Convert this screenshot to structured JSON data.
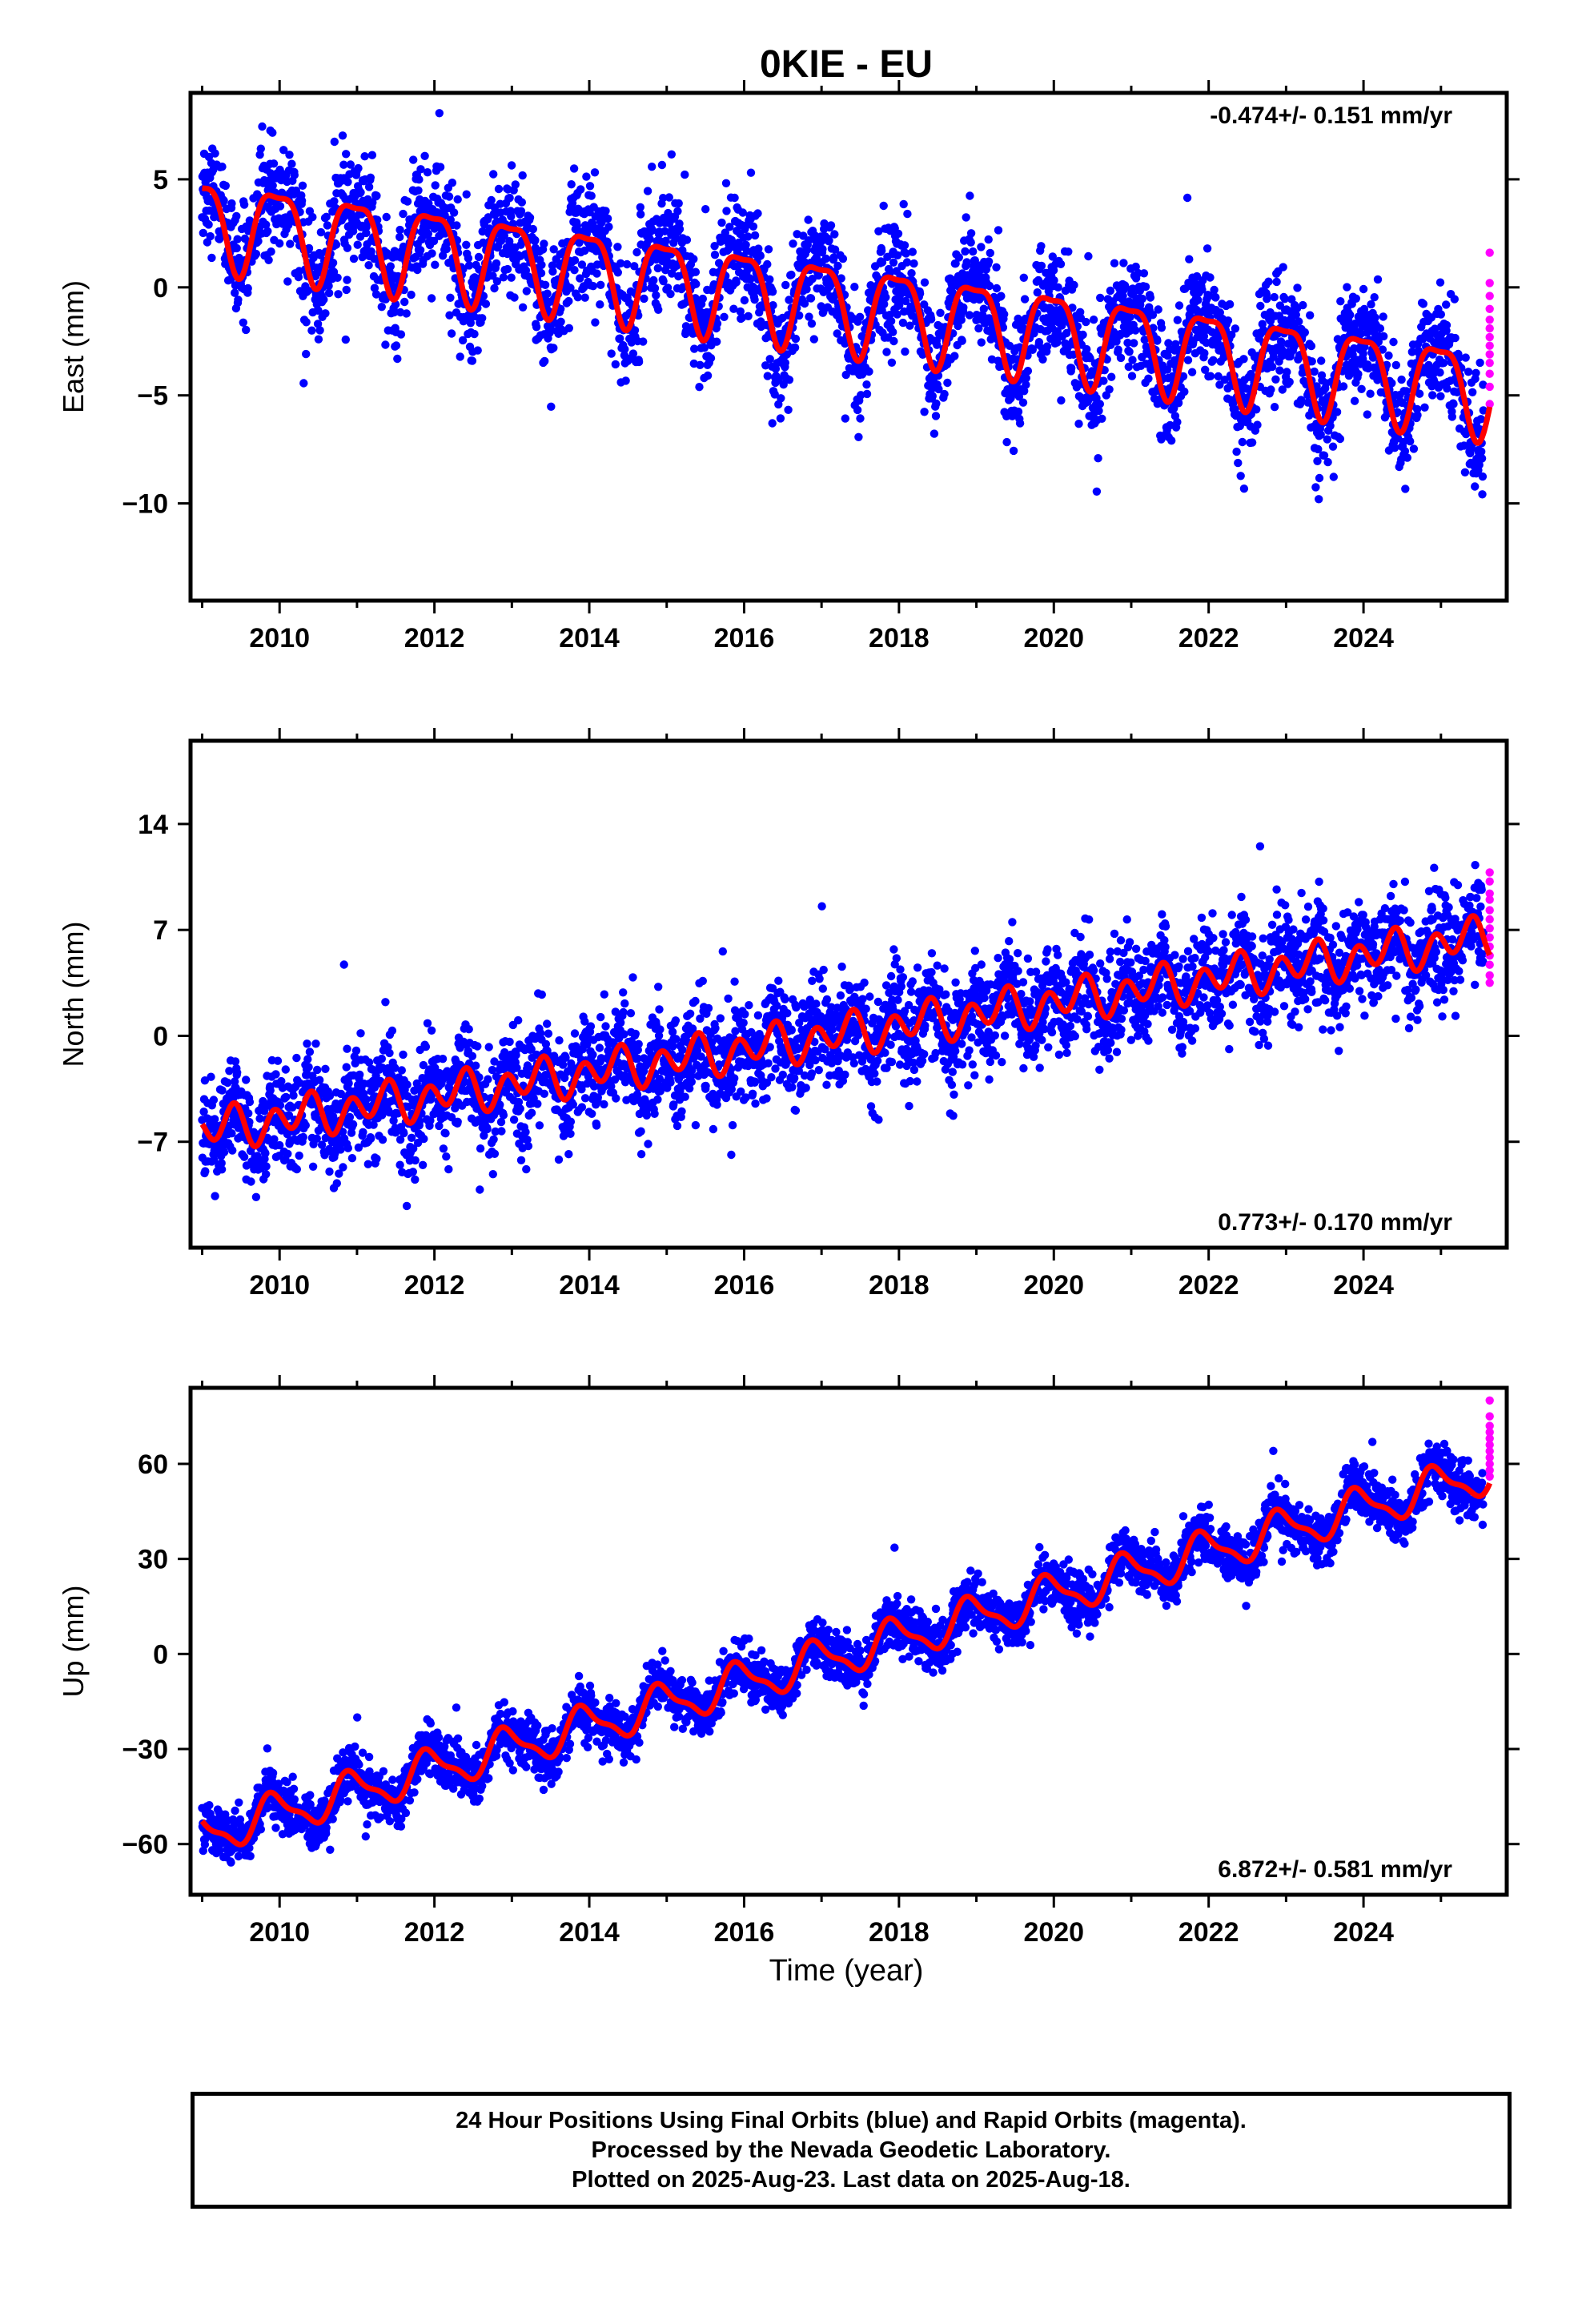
{
  "chart_data": {
    "title": "0KIE - EU",
    "type": "scatter",
    "xlabel": "Time (year)",
    "xlim": [
      2008.85,
      2025.85
    ],
    "xticks": [
      2010,
      2012,
      2014,
      2016,
      2018,
      2020,
      2022,
      2024
    ],
    "panels": [
      {
        "name": "east",
        "ylabel": "East (mm)",
        "ylim": [
          -14.5,
          9.0
        ],
        "yticks": [
          5,
          0,
          -5,
          -10
        ],
        "rate_label": "-0.474+/- 0.151 mm/yr",
        "rate_label_position": "top-right",
        "trend": {
          "value_at_2009": 3.2,
          "rate_mm_per_yr": -0.474
        },
        "seasonal": {
          "annual_amplitude": 2.0,
          "annual_phase": 0.72,
          "semiannual_amplitude": 0.6,
          "semiannual_phase": 0.1
        },
        "scatter_sd": 1.3,
        "rapid_points": [
          1.6,
          0.2,
          -0.4,
          -1.0,
          -1.5,
          -1.9,
          -2.3,
          -2.7,
          -3.1,
          -3.5,
          -4.0,
          -4.6,
          -5.4
        ],
        "colors": {
          "final": "#0000ff",
          "rapid": "#ff00ff",
          "model": "#ff0000"
        }
      },
      {
        "name": "north",
        "ylabel": "North (mm)",
        "ylim": [
          -14.0,
          19.5
        ],
        "yticks": [
          14,
          7,
          0,
          -7
        ],
        "rate_label": "0.773+/- 0.170 mm/yr",
        "rate_label_position": "bottom-right",
        "trend": {
          "value_at_2009": -6.3,
          "rate_mm_per_yr": 0.773
        },
        "seasonal": {
          "annual_amplitude": 0.6,
          "annual_phase": 0.05,
          "semiannual_amplitude": 1.1,
          "semiannual_phase": 0.3
        },
        "scatter_sd": 1.7,
        "rapid_points": [
          10.8,
          10.2,
          9.4,
          9.0,
          8.3,
          7.7,
          7.1,
          6.5,
          5.9,
          5.3,
          4.7,
          4.0,
          3.5
        ],
        "colors": {
          "final": "#0000ff",
          "rapid": "#ff00ff",
          "model": "#ff0000"
        }
      },
      {
        "name": "up",
        "ylabel": "Up (mm)",
        "ylim": [
          -76,
          84
        ],
        "yticks": [
          60,
          30,
          0,
          -30,
          -60
        ],
        "rate_label": "6.872+/- 0.581 mm/yr",
        "rate_label_position": "bottom-right",
        "trend": {
          "value_at_2009": -57.0,
          "rate_mm_per_yr": 6.872
        },
        "seasonal": {
          "annual_amplitude": 6.0,
          "annual_phase": 0.68,
          "semiannual_amplitude": 2.0,
          "semiannual_phase": 0.2
        },
        "scatter_sd": 4.0,
        "rapid_points": [
          80,
          75,
          72,
          70,
          68,
          66,
          64,
          62,
          60,
          58,
          56
        ],
        "colors": {
          "final": "#0000ff",
          "rapid": "#ff00ff",
          "model": "#ff0000"
        }
      }
    ],
    "data_start_year": 2009.0,
    "last_final_year": 2025.55,
    "rapid_year": 2025.63
  },
  "footer": {
    "line1": "24 Hour Positions Using Final Orbits (blue) and Rapid Orbits (magenta).",
    "line2": "Processed by the Nevada Geodetic Laboratory.",
    "line3": "Plotted on 2025-Aug-23. Last data on 2025-Aug-18."
  }
}
